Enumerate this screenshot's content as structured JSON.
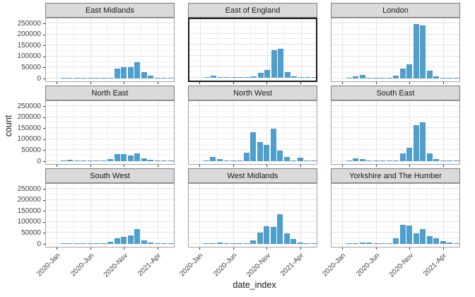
{
  "chart_data": {
    "type": "bar",
    "faceted": true,
    "title": "",
    "xlabel": "date_index",
    "ylabel": "count",
    "x": [
      "2020-Jan",
      "2020-Feb",
      "2020-Mar",
      "2020-Apr",
      "2020-May",
      "2020-Jun",
      "2020-Jul",
      "2020-Aug",
      "2020-Sep",
      "2020-Oct",
      "2020-Nov",
      "2020-Dec",
      "2021-Jan",
      "2021-Feb",
      "2021-Mar",
      "2021-Apr",
      "2021-May",
      "2021-Jun"
    ],
    "x_tick_labels": [
      "2020-Jan",
      "2020-Jun",
      "2020-Nov",
      "2021-Apr"
    ],
    "x_tick_month_indices": [
      0,
      5,
      10,
      15
    ],
    "y_ticks": [
      0,
      50000,
      100000,
      150000,
      200000,
      250000
    ],
    "y_minor_ticks": [
      25000,
      75000,
      125000,
      175000,
      225000
    ],
    "ylim": [
      0,
      250000
    ],
    "grid": true,
    "legend_position": "none",
    "highlighted_facet": "East of England",
    "series": [
      {
        "name": "East Midlands",
        "values": [
          0,
          400,
          1200,
          4500,
          4000,
          1500,
          300,
          800,
          4500,
          45000,
          52000,
          51000,
          74000,
          29000,
          12000,
          3000,
          1500,
          400
        ]
      },
      {
        "name": "East of England",
        "values": [
          0,
          300,
          8500,
          4000,
          1500,
          400,
          300,
          2000,
          6000,
          22000,
          36000,
          126000,
          131000,
          27000,
          6000,
          2500,
          1200,
          300
        ]
      },
      {
        "name": "London",
        "values": [
          0,
          300,
          8500,
          16000,
          2000,
          400,
          500,
          3000,
          12000,
          44000,
          65000,
          248000,
          240000,
          36000,
          8500,
          3000,
          4000,
          500
        ]
      },
      {
        "name": "North East",
        "values": [
          0,
          200,
          5000,
          2500,
          800,
          300,
          200,
          500,
          10000,
          32000,
          31000,
          26000,
          34000,
          14000,
          6000,
          2000,
          800,
          200
        ]
      },
      {
        "name": "North West",
        "values": [
          0,
          300,
          18000,
          11000,
          2500,
          1000,
          3000,
          40000,
          131000,
          88000,
          74000,
          149000,
          48000,
          18000,
          4000,
          15000,
          2000,
          300
        ]
      },
      {
        "name": "South East",
        "values": [
          0,
          300,
          13000,
          8500,
          2000,
          400,
          300,
          1000,
          4000,
          35000,
          62000,
          163000,
          176000,
          35000,
          8500,
          3000,
          1500,
          300
        ]
      },
      {
        "name": "South West",
        "values": [
          0,
          200,
          1000,
          4000,
          2500,
          800,
          300,
          500,
          10000,
          25000,
          32000,
          38000,
          68000,
          17000,
          5000,
          2000,
          1000,
          200
        ]
      },
      {
        "name": "West Midlands",
        "values": [
          0,
          200,
          1000,
          6000,
          3000,
          800,
          300,
          500,
          16000,
          50000,
          80000,
          77000,
          135000,
          48000,
          21000,
          5000,
          2000,
          300
        ]
      },
      {
        "name": "Yorkshire and The Humber",
        "values": [
          0,
          200,
          1000,
          8000,
          7000,
          2000,
          300,
          2000,
          25000,
          88000,
          84000,
          48500,
          66500,
          34500,
          25000,
          13000,
          5000,
          500
        ]
      }
    ],
    "colors": {
      "bar": "#4E9FCE",
      "bar_edge": "#4494C6",
      "strip_bg": "#DADADA",
      "strip_border": "#7E7E7E",
      "panel_border": "#A3A3A3",
      "highlight_border": "#1C1C1C",
      "grid_major": "#E4E4E4",
      "grid_minor": "#F2F2F2",
      "tick_mark": "#333333",
      "tick_text": "#404040",
      "axis_title_text": "#141414"
    }
  }
}
